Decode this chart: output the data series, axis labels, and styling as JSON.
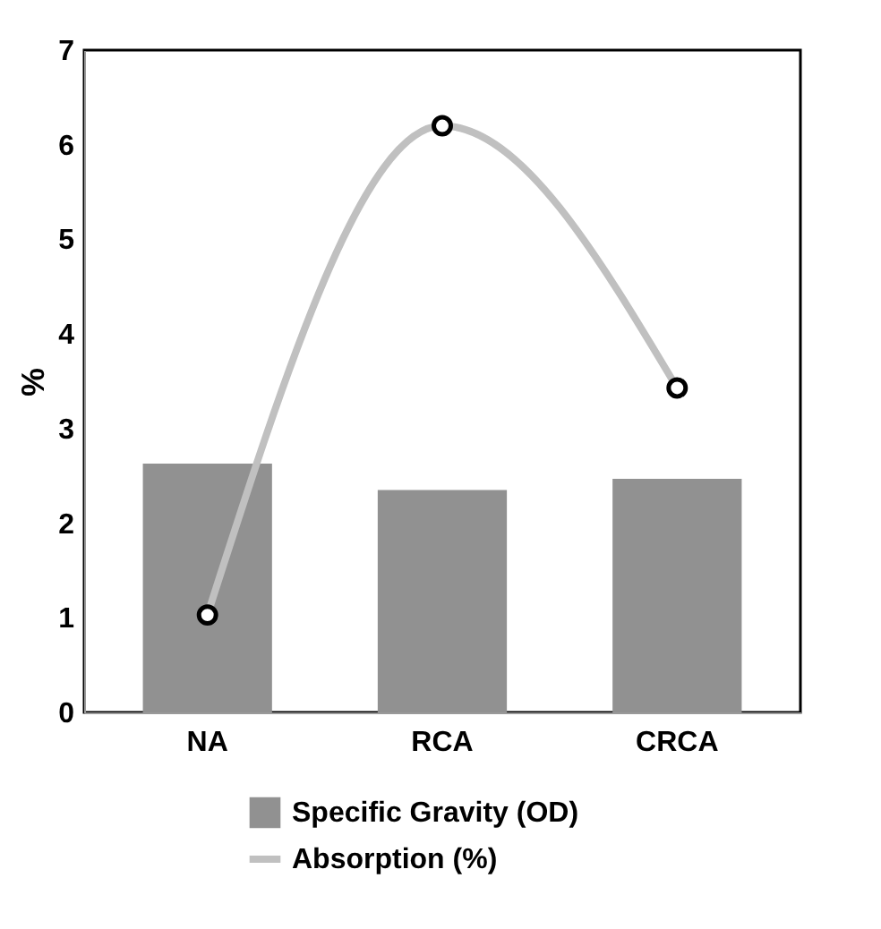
{
  "chart_data": {
    "type": "bar",
    "ylabel": "%",
    "categories": [
      "NA",
      "RCA",
      "CRCA"
    ],
    "series": [
      {
        "name": "Specific Gravity (OD)",
        "color": "#919191",
        "values": [
          2.63,
          2.35,
          2.47
        ]
      },
      {
        "name": "Absorption (%)",
        "type": "line",
        "color": "#c0c0c0",
        "marker": "circle",
        "values": [
          1.03,
          6.2,
          3.43
        ]
      }
    ],
    "ylim": [
      0,
      7
    ],
    "yticks": [
      0,
      1,
      2,
      3,
      4,
      5,
      6,
      7
    ],
    "grid": false,
    "legend": "bottom"
  }
}
